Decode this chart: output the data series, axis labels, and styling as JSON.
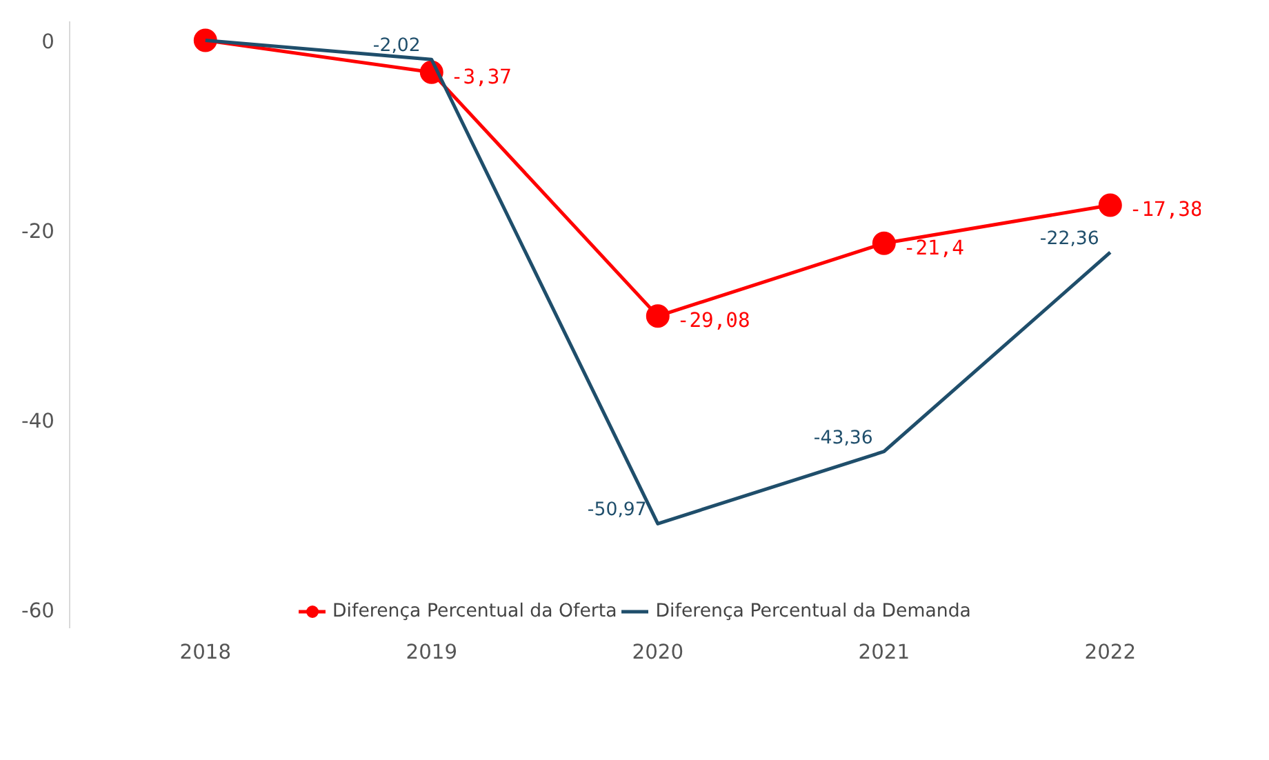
{
  "chart_data": {
    "type": "line",
    "categories": [
      "2018",
      "2019",
      "2020",
      "2021",
      "2022"
    ],
    "ylim": [
      -62,
      2
    ],
    "yticks": [
      0,
      -20,
      -40,
      -60
    ],
    "grid": false,
    "legend": "bottom",
    "series": [
      {
        "name": "Diferença Percentual da Oferta",
        "color": "#ff0000",
        "marker": "circle",
        "values": [
          0,
          -3.37,
          -29.08,
          -21.4,
          -17.38
        ],
        "value_labels": [
          null,
          "-3,37",
          "-29,08",
          "-21,4",
          "-17,38"
        ]
      },
      {
        "name": "Diferença Percentual da Demanda",
        "color": "#1f4e6b",
        "marker": "none",
        "values": [
          0,
          -2.02,
          -50.97,
          -43.36,
          -22.36
        ],
        "value_labels": [
          null,
          "-2,02",
          "-50,97",
          "-43,36",
          "-22,36"
        ]
      }
    ]
  }
}
